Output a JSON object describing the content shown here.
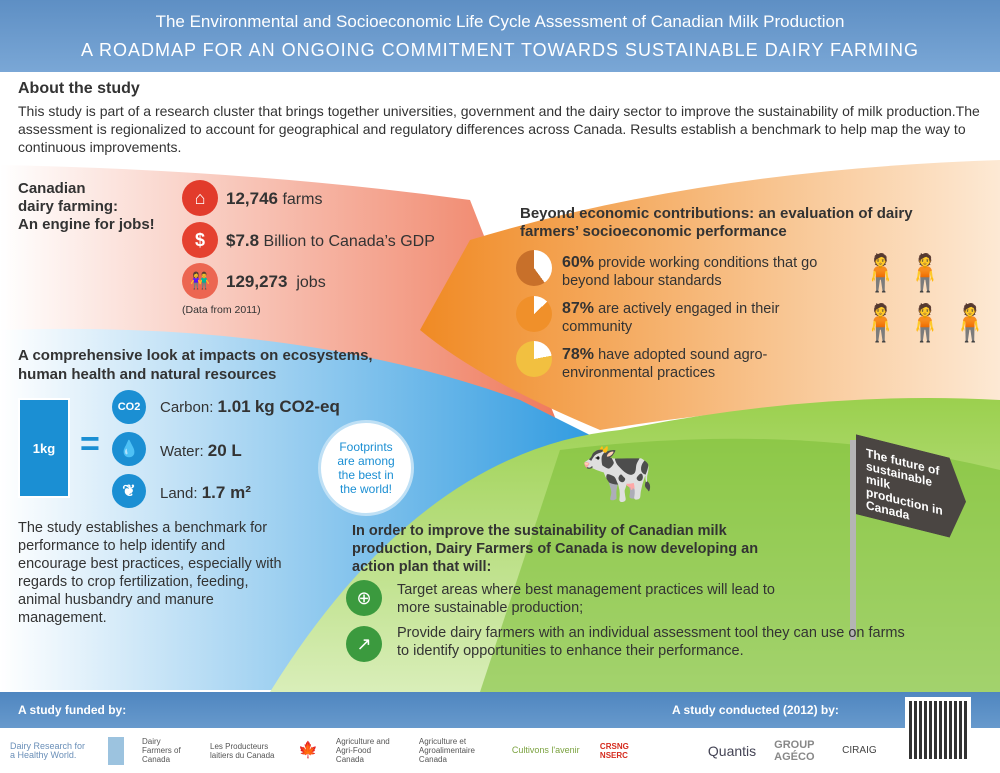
{
  "header": {
    "title": "The Environmental and Socioeconomic Life Cycle Assessment of Canadian Milk Production",
    "subtitle": "A ROADMAP FOR AN ONGOING COMMITMENT TOWARDS SUSTAINABLE DAIRY FARMING"
  },
  "about": {
    "heading": "About the study",
    "text": "This study is part of a research cluster that brings together universities, government and the dairy sector to improve the sustainability of milk production.The assessment is regionalized to account for geographical and regulatory differences across Canada. Results establish a benchmark to help map the way to continuous improvements."
  },
  "jobs": {
    "heading_l1": "Canadian",
    "heading_l2": "dairy farming:",
    "heading_l3": "An engine for jobs!",
    "items": [
      {
        "icon": "barn-icon",
        "value": "12,746",
        "label": "farms"
      },
      {
        "icon": "dollar-icon",
        "value": "$7.8",
        "label": "Billion to Canada’s GDP"
      },
      {
        "icon": "people-icon",
        "value": "129,273",
        "label": "jobs"
      }
    ],
    "note": "(Data from 2011)"
  },
  "socio": {
    "heading": "Beyond economic contributions:  an evaluation of dairy farmers’ socioeconomic performance",
    "items": [
      {
        "percent": 60,
        "value": "60%",
        "text": "provide working conditions that go beyond labour standards",
        "color": "#c8702a"
      },
      {
        "percent": 87,
        "value": "87%",
        "text": "are actively engaged in their community",
        "color": "#f0902a"
      },
      {
        "percent": 78,
        "value": "78%",
        "text": "have adopted sound agro-environmental practices",
        "color": "#f2c040"
      }
    ]
  },
  "impacts": {
    "heading": "A comprehensive look at impacts on ecosystems, human health and natural resources",
    "carton_label": "1kg",
    "equals": "=",
    "items": [
      {
        "icon": "co2-icon",
        "icon_text": "CO2",
        "label": "Carbon:",
        "value": "1.01",
        "unit": "kg CO2-eq"
      },
      {
        "icon": "water-drop-icon",
        "label": "Water:",
        "value": "20 L"
      },
      {
        "icon": "land-icon",
        "label": "Land:",
        "value": "1.7 m²"
      }
    ],
    "footprint": "Footprints are among the best in the world!",
    "text": "The study establishes a benchmark for performance to help identify and encourage best practices, especially with regards to crop fertilization, feeding, animal husbandry and manure management."
  },
  "action": {
    "heading": "In order to improve the sustainability of Canadian milk production, Dairy Farmers of Canada is now developing an action plan that will:",
    "items": [
      {
        "icon": "magnifier-plus-icon",
        "text": "Target areas where best management practices will lead to more sustainable production;"
      },
      {
        "icon": "chart-curve-icon",
        "text": "Provide dairy farmers with an individual assessment tool they can use on farms to identify opportunities to enhance their performance."
      }
    ]
  },
  "sign": {
    "text": "The future of sustainable milk production in Canada"
  },
  "footer": {
    "funded": "A study funded by:",
    "conducted": "A study conducted (2012) by:",
    "funders": [
      "Dairy Research for a Healthy World.",
      "Dairy Farmers of Canada",
      "Les Producteurs laitiers du Canada",
      "Agriculture and Agri-Food Canada",
      "Agriculture et Agroalimentaire Canada",
      "Cultivons l'avenir",
      "CRSNG NSERC"
    ],
    "conductors": [
      "Quantis",
      "GROUP AGÉCO",
      "CIRAIG"
    ]
  },
  "colors": {
    "header": "#6a9bcf",
    "orange": "#f08a24",
    "red": "#e8452f",
    "blue": "#1b8fd3",
    "green": "#3b9a3e"
  }
}
